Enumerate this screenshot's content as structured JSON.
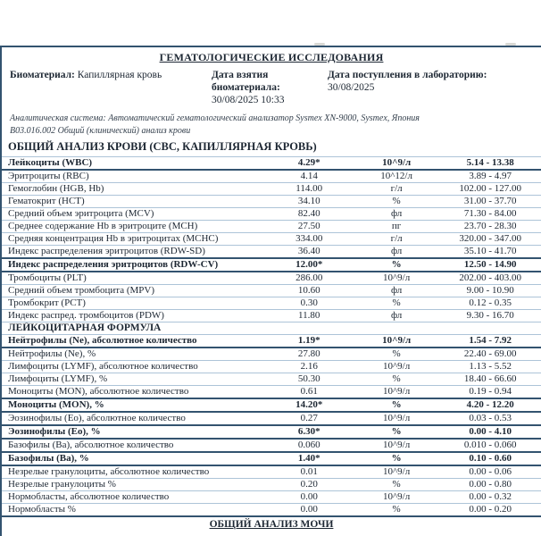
{
  "doc": {
    "title": "ГЕМАТОЛОГИЧЕСКИЕ ИССЛЕДОВАНИЯ",
    "biomaterial_label": "Биоматериал:",
    "biomaterial_value": "Капиллярная кровь",
    "collection_date_label": "Дата взятия биоматериала:",
    "collection_date_value": "30/08/2025 10:33",
    "received_date_label": "Дата поступления в лабораторию:",
    "received_date_value": "30/08/2025",
    "analytical_system_note": "Аналитическая система: Автоматический гематологический анализатор Sysmex XN-9000, Sysmex, Япония",
    "service_code_note": "В03.016.002 Общий (клинический) анализ крови",
    "section_title": "ОБЩИЙ АНАЛИЗ КРОВИ (СВС, КАПИЛЛЯРНАЯ КРОВЬ)",
    "footer_title": "ОБЩИЙ АНАЛИЗ МОЧИ"
  },
  "colors": {
    "border_dark": "#33536f",
    "border_light": "#adc4d8",
    "text": "#1d2733",
    "background": "#ffffff"
  },
  "table": {
    "rows": [
      {
        "type": "test",
        "name": "Лейкоциты (WBC)",
        "result": "4.29*",
        "units": "10^9/л",
        "ref": "5.14 - 13.38",
        "flag": true
      },
      {
        "type": "test",
        "name": "Эритроциты (RBC)",
        "result": "4.14",
        "units": "10^12/л",
        "ref": "3.89 - 4.97",
        "flag": false
      },
      {
        "type": "test",
        "name": "Гемоглобин (HGB, Hb)",
        "result": "114.00",
        "units": "г/л",
        "ref": "102.00 - 127.00",
        "flag": false
      },
      {
        "type": "test",
        "name": "Гематокрит (HCT)",
        "result": "34.10",
        "units": "%",
        "ref": "31.00 - 37.70",
        "flag": false
      },
      {
        "type": "test",
        "name": "Средний объем эритроцита (MCV)",
        "result": "82.40",
        "units": "фл",
        "ref": "71.30 - 84.00",
        "flag": false
      },
      {
        "type": "test",
        "name": "Среднее содержание Hb в эритроците (MCH)",
        "result": "27.50",
        "units": "пг",
        "ref": "23.70 - 28.30",
        "flag": false
      },
      {
        "type": "test",
        "name": "Средняя концентрация Hb в эритроцитах (MCHC)",
        "result": "334.00",
        "units": "г/л",
        "ref": "320.00 - 347.00",
        "flag": false
      },
      {
        "type": "test",
        "name": "Индекс распределения эритроцитов (RDW-SD)",
        "result": "36.40",
        "units": "фл",
        "ref": "35.10 - 41.70",
        "flag": false
      },
      {
        "type": "test",
        "name": "Индекс распределения эритроцитов (RDW-CV)",
        "result": "12.00*",
        "units": "%",
        "ref": "12.50 - 14.90",
        "flag": true
      },
      {
        "type": "test",
        "name": "Тромбоциты (PLT)",
        "result": "286.00",
        "units": "10^9/л",
        "ref": "202.00 - 403.00",
        "flag": false
      },
      {
        "type": "test",
        "name": "Средний объем тромбоцита (MPV)",
        "result": "10.60",
        "units": "фл",
        "ref": "9.00 - 10.90",
        "flag": false
      },
      {
        "type": "test",
        "name": "Тромбокрит (PCT)",
        "result": "0.30",
        "units": "%",
        "ref": "0.12 - 0.35",
        "flag": false
      },
      {
        "type": "test",
        "name": "Индекс распред. тромбоцитов (PDW)",
        "result": "11.80",
        "units": "фл",
        "ref": "9.30 - 16.70",
        "flag": false
      },
      {
        "type": "section",
        "name": "ЛЕЙКОЦИТАРНАЯ ФОРМУЛА"
      },
      {
        "type": "test",
        "name": "Нейтрофилы (Ne), абсолютное количество",
        "result": "1.19*",
        "units": "10^9/л",
        "ref": "1.54 - 7.92",
        "flag": true
      },
      {
        "type": "test",
        "name": "Нейтрофилы (Ne), %",
        "result": "27.80",
        "units": "%",
        "ref": "22.40 - 69.00",
        "flag": false
      },
      {
        "type": "test",
        "name": "Лимфоциты (LYMF), абсолютное количество",
        "result": "2.16",
        "units": "10^9/л",
        "ref": "1.13 - 5.52",
        "flag": false
      },
      {
        "type": "test",
        "name": "Лимфоциты (LYMF), %",
        "result": "50.30",
        "units": "%",
        "ref": "18.40 - 66.60",
        "flag": false
      },
      {
        "type": "test",
        "name": "Моноциты (MON), абсолютное количество",
        "result": "0.61",
        "units": "10^9/л",
        "ref": "0.19 - 0.94",
        "flag": false
      },
      {
        "type": "test",
        "name": "Моноциты (MON), %",
        "result": "14.20*",
        "units": "%",
        "ref": "4.20 - 12.20",
        "flag": true
      },
      {
        "type": "test",
        "name": "Эозинофилы (Eo), абсолютное количество",
        "result": "0.27",
        "units": "10^9/л",
        "ref": "0.03 - 0.53",
        "flag": false
      },
      {
        "type": "test",
        "name": "Эозинофилы (Eo), %",
        "result": "6.30*",
        "units": "%",
        "ref": "0.00 - 4.10",
        "flag": true
      },
      {
        "type": "test",
        "name": "Базофилы (Ba), абсолютное количество",
        "result": "0.060",
        "units": "10^9/л",
        "ref": "0.010 - 0.060",
        "flag": false
      },
      {
        "type": "test",
        "name": "Базофилы (Ba), %",
        "result": "1.40*",
        "units": "%",
        "ref": "0.10 - 0.60",
        "flag": true
      },
      {
        "type": "test",
        "name": "Незрелые гранулоциты, абсолютное количество",
        "result": "0.01",
        "units": "10^9/л",
        "ref": "0.00 - 0.06",
        "flag": false
      },
      {
        "type": "test",
        "name": "Незрелые гранулоциты %",
        "result": "0.20",
        "units": "%",
        "ref": "0.00 - 0.80",
        "flag": false
      },
      {
        "type": "test",
        "name": "Нормобласты, абсолютное количество",
        "result": "0.00",
        "units": "10^9/л",
        "ref": "0.00 - 0.32",
        "flag": false
      },
      {
        "type": "test",
        "name": "Нормобласты %",
        "result": "0.00",
        "units": "%",
        "ref": "0.00 - 0.20",
        "flag": false
      }
    ]
  }
}
